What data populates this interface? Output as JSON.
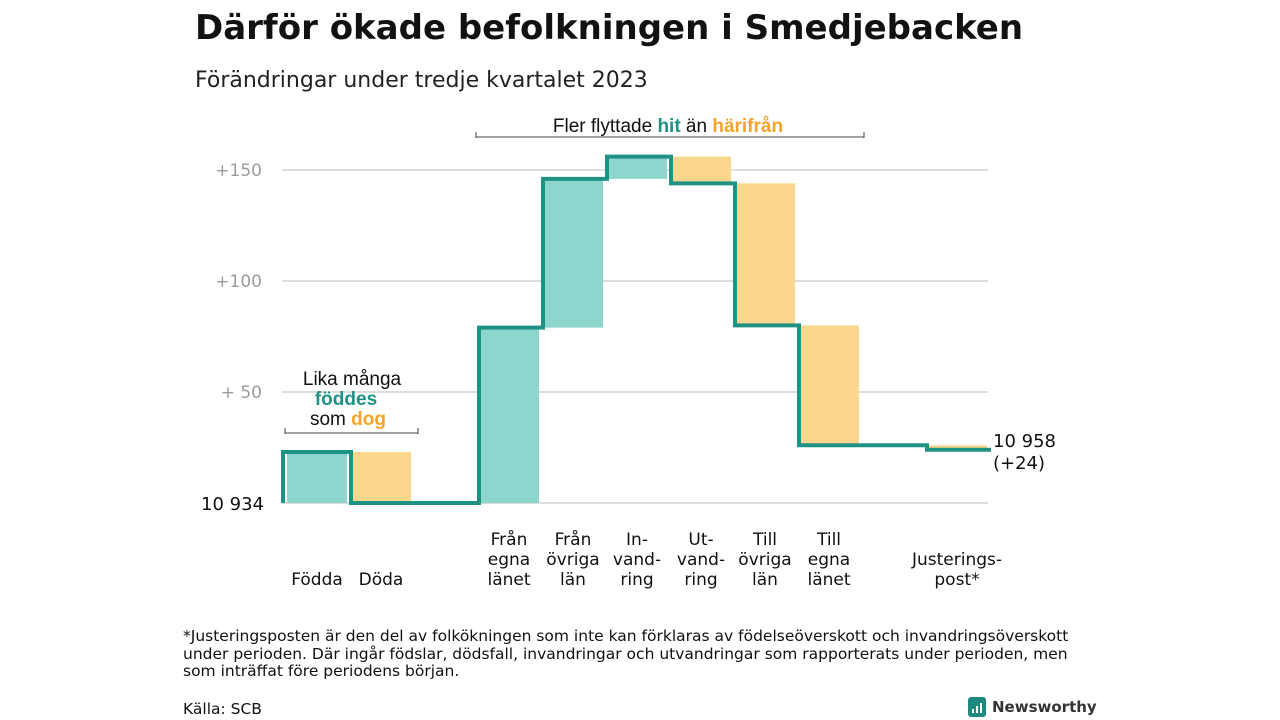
{
  "title": "Därför ökade befolkningen i Smedjebacken",
  "subtitle": "Förändringar under tredje kvartalet 2023",
  "colors": {
    "line": "#1e9285",
    "inflow": "#8dd5cd",
    "outflow": "#fbd68e",
    "hit": "#1e9285",
    "harifran": "#f2a52a",
    "grid": "#dddddd",
    "tick": "#9b9b9b"
  },
  "annotations": {
    "migration": {
      "part1": "Fler flyttade ",
      "hit": "hit",
      "part2": " än ",
      "harifran": "härifrån"
    },
    "births": {
      "line1": "Lika många",
      "line2": "föddes",
      "line3_pre": "som ",
      "line3_dog": "dog"
    }
  },
  "chart_data": {
    "type": "waterfall",
    "start_value": 10934,
    "start_label": "10  934",
    "end_label_line1": "10 958",
    "end_label_line2": "(+24)",
    "yticks": [
      {
        "value": 150,
        "label": "+150"
      },
      {
        "value": 100,
        "label": "+100"
      },
      {
        "value": 50,
        "label": "+  50"
      }
    ],
    "ylim": [
      0,
      160
    ],
    "steps": [
      {
        "category": [
          "Födda"
        ],
        "delta": 23
      },
      {
        "category": [
          "Döda"
        ],
        "delta": -23
      },
      {
        "category": [],
        "delta": 0
      },
      {
        "category": [
          "Från",
          "egna",
          "länet"
        ],
        "delta": 79
      },
      {
        "category": [
          "Från",
          "övriga",
          "län"
        ],
        "delta": 67
      },
      {
        "category": [
          "In-",
          "vand-",
          "ring"
        ],
        "delta": 10
      },
      {
        "category": [
          "Ut-",
          "vand-",
          "ring"
        ],
        "delta": -12
      },
      {
        "category": [
          "Till",
          "övriga",
          "län"
        ],
        "delta": -64
      },
      {
        "category": [
          "Till",
          "egna",
          "länet"
        ],
        "delta": -54
      },
      {
        "category": [],
        "delta": 0
      },
      {
        "category": [
          "Justerings-",
          "post*"
        ],
        "delta": -2
      }
    ]
  },
  "footnote": "*Justeringsposten är den del av folkökningen som inte kan förklaras av födelseöverskott och invandringsöverskott under perioden. Där ingår födslar, dödsfall, invandringar och utvandringar som rapporterats under perioden, men som inträffat före periodens början.",
  "source": "Källa: SCB",
  "brand": "Newsworthy"
}
